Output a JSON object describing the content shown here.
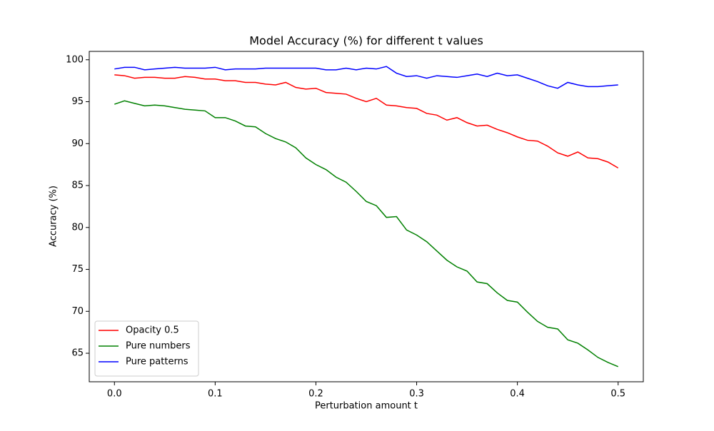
{
  "chart_data": {
    "type": "line",
    "title": "Model Accuracy (%) for different t values",
    "x_label": "Perturbation amount t",
    "y_label": "Accuracy (%)",
    "x": [
      0,
      0.01,
      0.02,
      0.03,
      0.04,
      0.05,
      0.06,
      0.07,
      0.08,
      0.09,
      0.1,
      0.11,
      0.12,
      0.13,
      0.14,
      0.15,
      0.16,
      0.17,
      0.18,
      0.19,
      0.2,
      0.21,
      0.22,
      0.23,
      0.24,
      0.25,
      0.26,
      0.27,
      0.28,
      0.29,
      0.3,
      0.31,
      0.32,
      0.33,
      0.34,
      0.35,
      0.36,
      0.37,
      0.38,
      0.39,
      0.4,
      0.41,
      0.42,
      0.43,
      0.44,
      0.45,
      0.46,
      0.47,
      0.48,
      0.49,
      0.5
    ],
    "series": [
      {
        "name": "Opacity 0.5",
        "color": "#ff0000",
        "values": [
          98.2,
          98.1,
          97.8,
          97.9,
          97.9,
          97.8,
          97.8,
          98.0,
          97.9,
          97.7,
          97.7,
          97.5,
          97.5,
          97.3,
          97.3,
          97.1,
          97.0,
          97.3,
          96.7,
          96.5,
          96.6,
          96.1,
          96.0,
          95.9,
          95.4,
          95.0,
          95.4,
          94.6,
          94.5,
          94.3,
          94.2,
          93.6,
          93.4,
          92.8,
          93.1,
          92.5,
          92.1,
          92.2,
          91.7,
          91.3,
          90.8,
          90.4,
          90.3,
          89.7,
          88.9,
          88.5,
          89.0,
          88.3,
          88.2,
          87.8,
          87.1
        ]
      },
      {
        "name": "Pure numbers",
        "color": "#008000",
        "values": [
          94.7,
          95.1,
          94.8,
          94.5,
          94.6,
          94.5,
          94.3,
          94.1,
          94.0,
          93.9,
          93.1,
          93.1,
          92.7,
          92.1,
          92.0,
          91.2,
          90.6,
          90.2,
          89.5,
          88.3,
          87.5,
          86.9,
          86.0,
          85.4,
          84.3,
          83.1,
          82.6,
          81.2,
          81.3,
          79.7,
          79.1,
          78.3,
          77.2,
          76.1,
          75.3,
          74.8,
          73.5,
          73.3,
          72.2,
          71.3,
          71.1,
          69.9,
          68.8,
          68.1,
          67.9,
          66.6,
          66.2,
          65.4,
          64.5,
          63.9,
          63.4
        ]
      },
      {
        "name": "Pure patterns",
        "color": "#0000ff",
        "values": [
          98.9,
          99.1,
          99.1,
          98.8,
          98.9,
          99.0,
          99.1,
          99.0,
          99.0,
          99.0,
          99.1,
          98.8,
          98.9,
          98.9,
          98.9,
          99.0,
          99.0,
          99.0,
          99.0,
          99.0,
          99.0,
          98.8,
          98.8,
          99.0,
          98.8,
          99.0,
          98.9,
          99.2,
          98.4,
          98.0,
          98.1,
          97.8,
          98.1,
          98.0,
          97.9,
          98.1,
          98.3,
          98.0,
          98.4,
          98.1,
          98.2,
          97.8,
          97.4,
          96.9,
          96.6,
          97.3,
          97.0,
          96.8,
          96.8,
          96.9,
          97.0
        ]
      }
    ],
    "xlim": [
      -0.025,
      0.525
    ],
    "ylim": [
      61.6,
      101.0
    ],
    "xticks": [
      {
        "value": 0,
        "label": "0.0"
      },
      0.1,
      0.2,
      0.3,
      0.4,
      0.5
    ],
    "yticks": [
      65,
      70,
      75,
      80,
      85,
      90,
      95,
      100
    ],
    "legend": "lower left"
  }
}
